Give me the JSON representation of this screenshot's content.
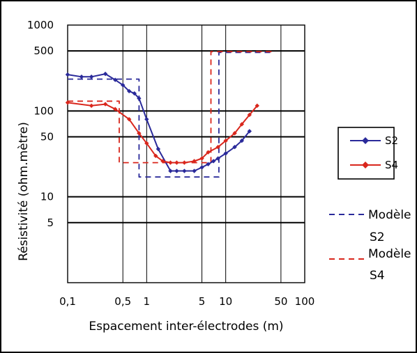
{
  "chart_data": {
    "type": "line",
    "x_scale": "log",
    "y_scale": "log",
    "xlabel": "Espacement inter-électrodes (m)",
    "ylabel": "Résistivité (ohm.mètre)",
    "xlim": [
      0.1,
      100
    ],
    "ylim": [
      1,
      1000
    ],
    "x_ticks": [
      {
        "value": 0.1,
        "label": "0,1"
      },
      {
        "value": 0.5,
        "label": "0,5"
      },
      {
        "value": 1,
        "label": "1"
      },
      {
        "value": 5,
        "label": "5"
      },
      {
        "value": 10,
        "label": "10"
      },
      {
        "value": 50,
        "label": "50"
      },
      {
        "value": 100,
        "label": "100"
      }
    ],
    "y_ticks": [
      {
        "value": 1000,
        "label": "1000"
      },
      {
        "value": 500,
        "label": "500"
      },
      {
        "value": 100,
        "label": "100"
      },
      {
        "value": 50,
        "label": "50"
      },
      {
        "value": 10,
        "label": "10"
      },
      {
        "value": 5,
        "label": "5"
      }
    ],
    "gridlines_x": [
      0.5,
      1,
      5,
      10,
      50
    ],
    "gridlines_y": [
      500,
      100,
      50,
      10,
      5
    ],
    "grid": true,
    "legend_position": "right",
    "series": [
      {
        "name": "S2",
        "kind": "measured",
        "color": "#2a2a9a",
        "marker": "diamond",
        "x": [
          0.1,
          0.15,
          0.2,
          0.3,
          0.4,
          0.5,
          0.6,
          0.7,
          0.8,
          1.0,
          1.4,
          2.0,
          2.4,
          3.0,
          4.0,
          5.0,
          6.0,
          7.0,
          8.0,
          10.0,
          13.0,
          16.0,
          20.0
        ],
        "y": [
          265,
          250,
          250,
          270,
          230,
          200,
          170,
          160,
          140,
          80,
          36,
          20,
          20,
          20,
          20,
          22,
          24,
          26,
          28,
          32,
          38,
          45,
          58
        ]
      },
      {
        "name": "S4",
        "kind": "measured",
        "color": "#d9261c",
        "marker": "diamond",
        "x": [
          0.1,
          0.2,
          0.3,
          0.4,
          0.6,
          0.8,
          1.0,
          1.3,
          1.6,
          2.0,
          2.4,
          3.0,
          4.0,
          5.0,
          6.0,
          8.0,
          10.0,
          13.0,
          16.0,
          20.0,
          25.0
        ],
        "y": [
          125,
          115,
          120,
          105,
          80,
          55,
          42,
          30,
          26,
          25,
          25,
          25,
          26,
          28,
          33,
          38,
          45,
          55,
          70,
          90,
          115
        ]
      },
      {
        "name": "Modèle S2",
        "kind": "model",
        "color": "#2a2a9a",
        "dashed": true,
        "x": [
          0.1,
          0.8,
          0.8,
          8.2,
          8.2,
          40
        ],
        "y": [
          235,
          235,
          17,
          17,
          480,
          480
        ]
      },
      {
        "name": "Modèle S4",
        "kind": "model",
        "color": "#d9261c",
        "dashed": true,
        "x": [
          0.1,
          0.45,
          0.45,
          6.5,
          6.5,
          40
        ],
        "y": [
          130,
          130,
          25,
          25,
          490,
          490
        ]
      }
    ]
  },
  "legend": {
    "s2": "S2",
    "s4": "S4",
    "model_s2_line1": "Modèle",
    "model_s2_line2": "S2",
    "model_s4_line1": "Modèle",
    "model_s4_line2": "S4"
  },
  "colors": {
    "s2": "#2a2a9a",
    "s4": "#d9261c",
    "grid": "#000000",
    "background": "#ffffff"
  }
}
